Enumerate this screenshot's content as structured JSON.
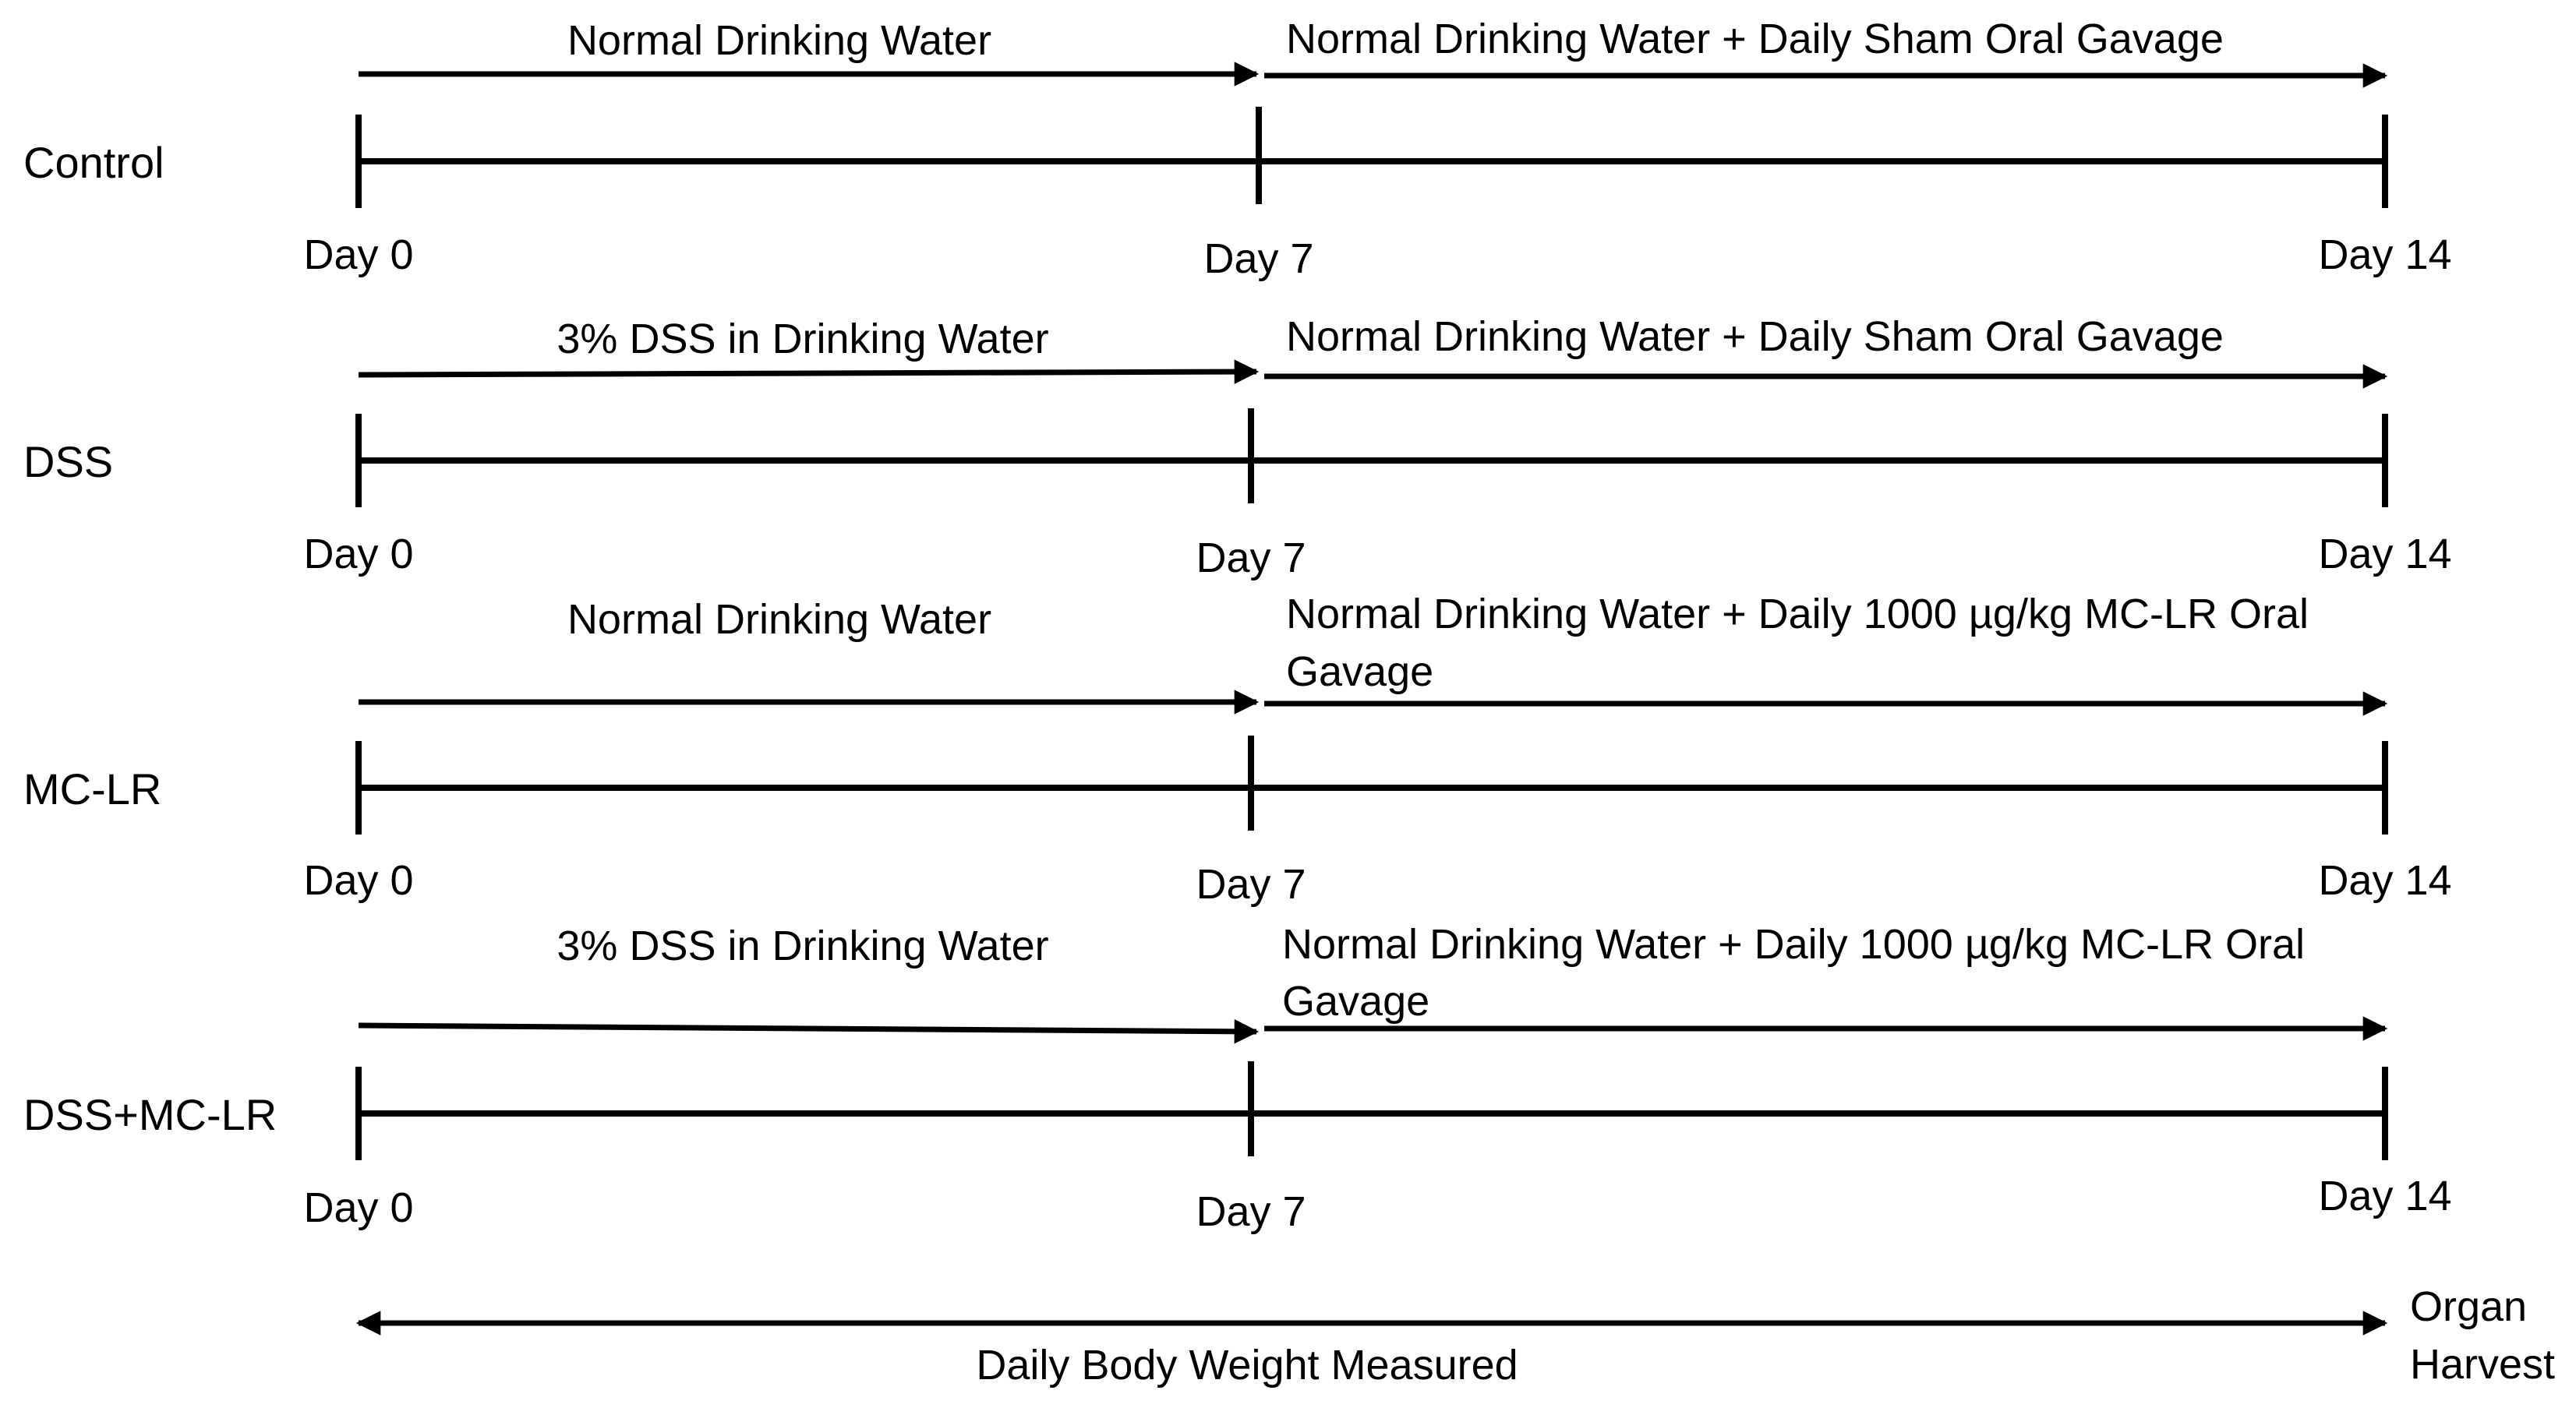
{
  "groups": [
    {
      "name": "Control",
      "phase1": "Normal Drinking Water",
      "phase2": "Normal Drinking Water + Daily Sham Oral Gavage",
      "phase2_line2": "",
      "day0": "Day 0",
      "day7": "Day 7",
      "day14": "Day 14"
    },
    {
      "name": "DSS",
      "phase1": "3% DSS in Drinking Water",
      "phase2": "Normal Drinking Water + Daily Sham Oral Gavage",
      "phase2_line2": "",
      "day0": "Day 0",
      "day7": "Day 7",
      "day14": "Day 14"
    },
    {
      "name": "MC-LR",
      "phase1": "Normal Drinking Water",
      "phase2": "Normal Drinking Water + Daily 1000 µg/kg MC-LR Oral",
      "phase2_line2": "Gavage",
      "day0": "Day 0",
      "day7": "Day 7",
      "day14": "Day 14"
    },
    {
      "name": "DSS+MC-LR",
      "phase1": "3% DSS in Drinking Water",
      "phase2": "Normal Drinking Water + Daily 1000 µg/kg MC-LR Oral",
      "phase2_line2": "Gavage",
      "day0": "Day 0",
      "day7": "Day 7",
      "day14": "Day 14"
    }
  ],
  "footer": {
    "measure_label": "Daily Body Weight Measured",
    "harvest_line1": "Organ",
    "harvest_line2": "Harvest"
  },
  "colors": {
    "line": "#000000",
    "background": "#ffffff"
  }
}
